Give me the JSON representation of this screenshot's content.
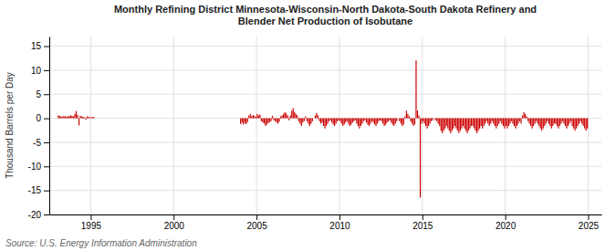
{
  "chart_data": {
    "type": "bar",
    "title": [
      "Monthly Refining District Minnesota-Wisconsin-North Dakota-South Dakota Refinery and",
      "Blender Net Production of Isobutane"
    ],
    "ylabel": "Thousand Barrels per Day",
    "annotations": [
      "Source: U.S. Energy Information Administration"
    ],
    "color": "#cc0000",
    "grid": true,
    "xlim": [
      1992.5,
      2025.8
    ],
    "xticks": [
      1995,
      2000,
      2005,
      2010,
      2015,
      2020,
      2025
    ],
    "ylim": [
      -20,
      17
    ],
    "yticks": [
      -20,
      -15,
      -10,
      -5,
      0,
      5,
      10,
      15
    ],
    "x": [
      1993.0416666666667,
      1993.125,
      1993.2083333333333,
      1993.2916666666667,
      1993.375,
      1993.4583333333333,
      1993.5416666666667,
      1993.625,
      1993.7083333333333,
      1993.7916666666667,
      1993.875,
      1993.9583333333333,
      1994.0416666666667,
      1994.125,
      1994.2083333333333,
      1994.2916666666667,
      1994.375,
      1994.4583333333333,
      1994.5416666666667,
      1994.625,
      1994.7083333333333,
      1994.7916666666667,
      1994.875,
      1994.9583333333333,
      1995.0416666666667,
      1995.125,
      1995.2083333333333,
      1995.2916666666667,
      1995.375,
      1995.4583333333333,
      1995.5416666666667,
      1995.625,
      1995.7083333333333,
      1995.7916666666667,
      1995.875,
      1995.9583333333333,
      1996.0416666666667,
      1996.125,
      1996.2083333333333,
      1996.2916666666667,
      1996.375,
      1996.4583333333333,
      1996.5416666666667,
      1996.625,
      1996.7083333333333,
      1996.7916666666667,
      1996.875,
      1996.9583333333333,
      1997.0416666666667,
      1997.125,
      1997.2083333333333,
      1997.2916666666667,
      1997.375,
      1997.4583333333333,
      1997.5416666666667,
      1997.625,
      1997.7083333333333,
      1997.7916666666667,
      1997.875,
      1997.9583333333333,
      1998.0416666666667,
      1998.125,
      1998.2083333333333,
      1998.2916666666667,
      1998.375,
      1998.4583333333333,
      1998.5416666666667,
      1998.625,
      1998.7083333333333,
      1998.7916666666667,
      1998.875,
      1998.9583333333333,
      1999.0416666666667,
      1999.125,
      1999.2083333333333,
      1999.2916666666667,
      1999.375,
      1999.4583333333333,
      1999.5416666666667,
      1999.625,
      1999.7083333333333,
      1999.7916666666667,
      1999.875,
      1999.9583333333333,
      2000.0416666666667,
      2000.125,
      2000.2083333333333,
      2000.2916666666667,
      2000.375,
      2000.4583333333333,
      2000.5416666666667,
      2000.625,
      2000.7083333333333,
      2000.7916666666667,
      2000.875,
      2000.9583333333333,
      2001.0416666666667,
      2001.125,
      2001.2083333333333,
      2001.2916666666667,
      2001.375,
      2001.4583333333333,
      2001.5416666666667,
      2001.625,
      2001.7083333333333,
      2001.7916666666667,
      2001.875,
      2001.9583333333333,
      2002.0416666666667,
      2002.125,
      2002.2083333333333,
      2002.2916666666667,
      2002.375,
      2002.4583333333333,
      2002.5416666666667,
      2002.625,
      2002.7083333333333,
      2002.7916666666667,
      2002.875,
      2002.9583333333333,
      2003.0416666666667,
      2003.125,
      2003.2083333333333,
      2003.2916666666667,
      2003.375,
      2003.4583333333333,
      2003.5416666666667,
      2003.625,
      2003.7083333333333,
      2003.7916666666667,
      2003.875,
      2003.9583333333333,
      2004.0416666666667,
      2004.125,
      2004.2083333333333,
      2004.2916666666667,
      2004.375,
      2004.4583333333333,
      2004.5416666666667,
      2004.625,
      2004.7083333333333,
      2004.7916666666667,
      2004.875,
      2004.9583333333333,
      2005.0416666666667,
      2005.125,
      2005.2083333333333,
      2005.2916666666667,
      2005.375,
      2005.4583333333333,
      2005.5416666666667,
      2005.625,
      2005.7083333333333,
      2005.7916666666667,
      2005.875,
      2005.9583333333333,
      2006.0416666666667,
      2006.125,
      2006.2083333333333,
      2006.2916666666667,
      2006.375,
      2006.4583333333333,
      2006.5416666666667,
      2006.625,
      2006.7083333333333,
      2006.7916666666667,
      2006.875,
      2006.9583333333333,
      2007.0416666666667,
      2007.125,
      2007.2083333333333,
      2007.2916666666667,
      2007.375,
      2007.4583333333333,
      2007.5416666666667,
      2007.625,
      2007.7083333333333,
      2007.7916666666667,
      2007.875,
      2007.9583333333333,
      2008.0416666666667,
      2008.125,
      2008.2083333333333,
      2008.2916666666667,
      2008.375,
      2008.4583333333333,
      2008.5416666666667,
      2008.625,
      2008.7083333333333,
      2008.7916666666667,
      2008.875,
      2008.9583333333333,
      2009.0416666666667,
      2009.125,
      2009.2083333333333,
      2009.2916666666667,
      2009.375,
      2009.4583333333333,
      2009.5416666666667,
      2009.625,
      2009.7083333333333,
      2009.7916666666667,
      2009.875,
      2009.9583333333333,
      2010.0416666666667,
      2010.125,
      2010.2083333333333,
      2010.2916666666667,
      2010.375,
      2010.4583333333333,
      2010.5416666666667,
      2010.625,
      2010.7083333333333,
      2010.7916666666667,
      2010.875,
      2010.9583333333333,
      2011.0416666666667,
      2011.125,
      2011.2083333333333,
      2011.2916666666667,
      2011.375,
      2011.4583333333333,
      2011.5416666666667,
      2011.625,
      2011.7083333333333,
      2011.7916666666667,
      2011.875,
      2011.9583333333333,
      2012.0416666666667,
      2012.125,
      2012.2083333333333,
      2012.2916666666667,
      2012.375,
      2012.4583333333333,
      2012.5416666666667,
      2012.625,
      2012.7083333333333,
      2012.7916666666667,
      2012.875,
      2012.9583333333333,
      2013.0416666666667,
      2013.125,
      2013.2083333333333,
      2013.2916666666667,
      2013.375,
      2013.4583333333333,
      2013.5416666666667,
      2013.625,
      2013.7083333333333,
      2013.7916666666667,
      2013.875,
      2013.9583333333333,
      2014.0416666666667,
      2014.125,
      2014.2083333333333,
      2014.2916666666667,
      2014.375,
      2014.4583333333333,
      2014.5416666666667,
      2014.625,
      2014.7083333333333,
      2014.7916666666667,
      2014.875,
      2014.9583333333333,
      2015.0416666666667,
      2015.125,
      2015.2083333333333,
      2015.2916666666667,
      2015.375,
      2015.4583333333333,
      2015.5416666666667,
      2015.625,
      2015.7083333333333,
      2015.7916666666667,
      2015.875,
      2015.9583333333333,
      2016.0416666666667,
      2016.125,
      2016.2083333333333,
      2016.2916666666667,
      2016.375,
      2016.4583333333333,
      2016.5416666666667,
      2016.625,
      2016.7083333333333,
      2016.7916666666667,
      2016.875,
      2016.9583333333333,
      2017.0416666666667,
      2017.125,
      2017.2083333333333,
      2017.2916666666667,
      2017.375,
      2017.4583333333333,
      2017.5416666666667,
      2017.625,
      2017.7083333333333,
      2017.7916666666667,
      2017.875,
      2017.9583333333333,
      2018.0416666666667,
      2018.125,
      2018.2083333333333,
      2018.2916666666667,
      2018.375,
      2018.4583333333333,
      2018.5416666666667,
      2018.625,
      2018.7083333333333,
      2018.7916666666667,
      2018.875,
      2018.9583333333333,
      2019.0416666666667,
      2019.125,
      2019.2083333333333,
      2019.2916666666667,
      2019.375,
      2019.4583333333333,
      2019.5416666666667,
      2019.625,
      2019.7083333333333,
      2019.7916666666667,
      2019.875,
      2019.9583333333333,
      2020.0416666666667,
      2020.125,
      2020.2083333333333,
      2020.2916666666667,
      2020.375,
      2020.4583333333333,
      2020.5416666666667,
      2020.625,
      2020.7083333333333,
      2020.7916666666667,
      2020.875,
      2020.9583333333333,
      2021.0416666666667,
      2021.125,
      2021.2083333333333,
      2021.2916666666667,
      2021.375,
      2021.4583333333333,
      2021.5416666666667,
      2021.625,
      2021.7083333333333,
      2021.7916666666667,
      2021.875,
      2021.9583333333333,
      2022.0416666666667,
      2022.125,
      2022.2083333333333,
      2022.2916666666667,
      2022.375,
      2022.4583333333333,
      2022.5416666666667,
      2022.625,
      2022.7083333333333,
      2022.7916666666667,
      2022.875,
      2022.9583333333333,
      2023.0416666666667,
      2023.125,
      2023.2083333333333,
      2023.2916666666667,
      2023.375,
      2023.4583333333333,
      2023.5416666666667,
      2023.625,
      2023.7083333333333,
      2023.7916666666667,
      2023.875,
      2023.9583333333333,
      2024.0416666666667,
      2024.125,
      2024.2083333333333,
      2024.2916666666667,
      2024.375,
      2024.4583333333333,
      2024.5416666666667,
      2024.625,
      2024.7083333333333,
      2024.7916666666667,
      2024.875,
      2024.9583333333333
    ],
    "values": [
      0.6,
      0.5,
      0.4,
      0.3,
      0.5,
      0.4,
      0.3,
      0.4,
      0.5,
      0.6,
      0.5,
      0.4,
      0.9,
      1.5,
      0.7,
      -1.5,
      0.5,
      0.4,
      0.3,
      0.2,
      -0.3,
      0.4,
      0.3,
      0.2,
      0.2,
      0.3,
      0.2,
      0.0,
      0.0,
      0.0,
      0.0,
      0.0,
      0.0,
      0.0,
      0.0,
      0.0,
      0.0,
      0.0,
      0.0,
      0.0,
      0.0,
      0.0,
      0.0,
      0.0,
      0.0,
      0.0,
      0.0,
      0.0,
      0.0,
      0.0,
      0.0,
      0.0,
      0.0,
      0.0,
      0.0,
      0.0,
      0.0,
      0.0,
      0.0,
      0.0,
      0.0,
      0.0,
      0.0,
      0.0,
      0.0,
      0.0,
      0.0,
      0.0,
      0.0,
      0.0,
      0.0,
      0.0,
      0.0,
      0.0,
      0.0,
      0.0,
      0.0,
      0.0,
      0.0,
      0.0,
      0.0,
      0.0,
      0.0,
      0.0,
      0.0,
      0.0,
      0.0,
      0.0,
      0.0,
      0.0,
      0.0,
      0.0,
      0.0,
      0.0,
      0.0,
      0.0,
      0.0,
      0.0,
      0.0,
      0.0,
      0.0,
      0.0,
      0.0,
      0.0,
      0.0,
      0.0,
      0.0,
      0.0,
      0.0,
      0.0,
      0.0,
      0.0,
      0.0,
      0.0,
      0.0,
      0.0,
      0.0,
      0.0,
      0.0,
      0.0,
      0.0,
      0.0,
      0.0,
      0.0,
      0.0,
      0.0,
      0.0,
      0.0,
      0.0,
      0.0,
      0.0,
      0.0,
      -1.2,
      -0.9,
      -1.3,
      -1.0,
      -1.2,
      -0.8,
      0.6,
      0.9,
      0.4,
      0.7,
      0.5,
      0.3,
      0.9,
      0.6,
      0.8,
      -0.6,
      -0.9,
      -1.1,
      -1.6,
      -1.3,
      -1.0,
      -0.8,
      -0.6,
      0.5,
      -0.4,
      -0.6,
      -0.9,
      -1.1,
      -0.7,
      0.4,
      0.6,
      0.9,
      1.3,
      1.0,
      0.6,
      -0.4,
      0.6,
      1.6,
      2.1,
      1.3,
      0.9,
      0.6,
      -0.6,
      -1.1,
      -1.6,
      -0.9,
      -0.6,
      0.4,
      -0.6,
      -1.1,
      -1.6,
      -1.1,
      -0.6,
      0.0,
      0.6,
      1.1,
      0.6,
      -0.6,
      -1.1,
      -0.9,
      -1.6,
      -2.1,
      -1.6,
      -1.1,
      -0.6,
      -0.4,
      -0.9,
      -1.3,
      -1.6,
      -1.1,
      -0.6,
      -0.4,
      -0.6,
      -1.1,
      -1.6,
      -1.3,
      -0.9,
      -0.6,
      -1.1,
      -1.6,
      -1.3,
      -0.9,
      -0.6,
      -0.4,
      -1.1,
      -1.6,
      -2.1,
      -1.6,
      -1.1,
      -0.6,
      -0.4,
      -0.9,
      -1.3,
      -1.6,
      -1.1,
      -0.6,
      -0.9,
      -1.3,
      -1.6,
      -1.1,
      -0.6,
      -0.4,
      -0.6,
      -1.1,
      -1.6,
      -1.3,
      -0.9,
      -0.6,
      -0.4,
      -0.9,
      -1.3,
      -1.6,
      -1.1,
      -0.6,
      0.0,
      -0.6,
      -1.1,
      -1.6,
      -1.3,
      0.4,
      1.6,
      0.9,
      0.4,
      -0.6,
      -1.1,
      -1.6,
      -1.3,
      12.0,
      1.6,
      0.6,
      -16.5,
      -1.1,
      -0.6,
      -1.1,
      -1.6,
      -2.1,
      -1.6,
      -1.1,
      -0.6,
      -0.4,
      0.0,
      -0.4,
      -0.6,
      -1.1,
      -1.6,
      -2.6,
      -3.1,
      -2.6,
      -2.1,
      -1.6,
      -2.1,
      -2.6,
      -3.1,
      -2.6,
      -2.1,
      -1.6,
      -2.1,
      -2.6,
      -3.1,
      -2.6,
      -2.1,
      -1.6,
      -2.1,
      -2.6,
      -3.1,
      -2.6,
      -2.1,
      -1.6,
      -1.6,
      -2.1,
      -2.6,
      -3.1,
      -2.6,
      -2.1,
      -1.6,
      -2.1,
      -1.6,
      -1.1,
      -0.6,
      -1.1,
      -1.6,
      -1.1,
      -0.6,
      -1.1,
      -1.6,
      -2.1,
      -1.6,
      -1.1,
      -0.6,
      -1.1,
      -1.6,
      -2.1,
      -1.6,
      -2.1,
      -1.6,
      -1.1,
      -0.6,
      -1.1,
      -1.6,
      -2.1,
      -1.6,
      -1.1,
      -0.6,
      -1.1,
      0.6,
      1.3,
      0.9,
      0.4,
      -0.6,
      -1.1,
      -1.6,
      -2.1,
      -1.6,
      -1.1,
      -0.6,
      -1.1,
      -1.6,
      -2.1,
      -2.6,
      -2.1,
      -1.6,
      -1.1,
      -0.6,
      -1.1,
      -1.6,
      -2.1,
      -1.6,
      -1.1,
      -1.1,
      -1.6,
      -2.1,
      -1.6,
      -1.1,
      -0.6,
      -1.1,
      -1.6,
      -2.1,
      -1.6,
      -1.1,
      -0.6,
      -1.6,
      -2.1,
      -2.6,
      -2.1,
      -1.6,
      -1.1,
      -0.6,
      -1.1,
      -1.6,
      -2.1,
      -2.6,
      -2.1
    ]
  }
}
